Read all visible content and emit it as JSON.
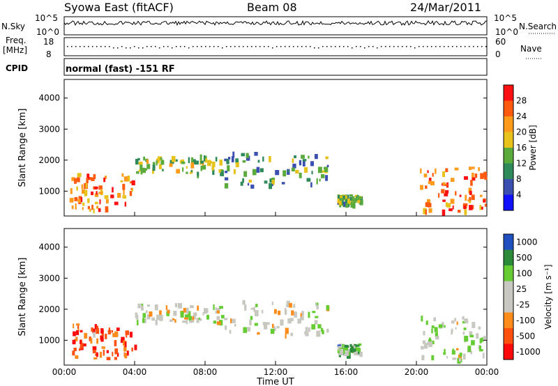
{
  "header": {
    "station": "Syowa East (fitACF)",
    "beam": "Beam 08",
    "date": "24/Mar/2011"
  },
  "noise_panel": {
    "left_label": "N.Sky",
    "right_label": "N.Search",
    "left_ticks": [
      "10^5",
      "10^0"
    ],
    "right_ticks": [
      "10^5",
      "10^0"
    ]
  },
  "freq_panel": {
    "left_label_1": "Freq.",
    "left_label_2": "[MHz]",
    "right_label": "Nave",
    "left_ticks": [
      "18",
      "8"
    ],
    "right_ticks": [
      "60",
      "0"
    ]
  },
  "cpid_panel": {
    "label": "CPID",
    "text": "normal (fast) -151 RF"
  },
  "colors": {
    "power_scale": [
      "#1010ff",
      "#3a4fb0",
      "#2e8a5a",
      "#5aaa3c",
      "#e6c21a",
      "#ff9a1a",
      "#ff5a10",
      "#ff1010"
    ],
    "velocity_scale": [
      "#ff0a0a",
      "#ff5010",
      "#ff8c1a",
      "#c8c8c0",
      "#c8c8c0",
      "#66cc33",
      "#2a8a3a",
      "#2050c0"
    ]
  },
  "chart_data": [
    {
      "type": "heatmap",
      "title": "",
      "xlabel": "Time UT",
      "ylabel": "Slant Range [km]",
      "xticks": [
        "00:00",
        "04:00",
        "08:00",
        "12:00",
        "16:00",
        "20:00",
        "00:00"
      ],
      "xlim": [
        0,
        24
      ],
      "yticks": [
        "1000",
        "2000",
        "3000",
        "4000"
      ],
      "ylim": [
        200,
        4600
      ],
      "colorbar": {
        "label": "Power [dB]",
        "ticks": [
          "4",
          "8",
          "12",
          "16",
          "20",
          "24",
          "28"
        ],
        "range": [
          0,
          32
        ]
      },
      "regions": [
        {
          "t0": 0.3,
          "t1": 4.0,
          "r0": 400,
          "r1": 1600,
          "level": 0.75
        },
        {
          "t0": 4.0,
          "t1": 9.0,
          "r0": 1600,
          "r1": 2200,
          "level": 0.45
        },
        {
          "t0": 9.0,
          "t1": 15.0,
          "r0": 1200,
          "r1": 2300,
          "level": 0.35
        },
        {
          "t0": 15.5,
          "t1": 16.8,
          "r0": 600,
          "r1": 900,
          "level": 0.4
        },
        {
          "t0": 20.2,
          "t1": 24.0,
          "r0": 400,
          "r1": 1800,
          "level": 0.8
        }
      ]
    },
    {
      "type": "heatmap",
      "title": "",
      "xlabel": "Time UT",
      "ylabel": "Slant Range [km]",
      "xticks": [
        "00:00",
        "04:00",
        "08:00",
        "12:00",
        "16:00",
        "20:00",
        "00:00"
      ],
      "xlim": [
        0,
        24
      ],
      "yticks": [
        "1000",
        "2000",
        "3000",
        "4000"
      ],
      "ylim": [
        200,
        4600
      ],
      "colorbar": {
        "label": "Velocity [m s⁻¹]",
        "ticks": [
          "1000",
          "500",
          "100",
          "25",
          "-25",
          "-100",
          "-500",
          "-1000"
        ],
        "range": [
          -1000,
          1000
        ]
      },
      "regions": [
        {
          "t0": 0.3,
          "t1": 4.0,
          "r0": 400,
          "r1": 1600,
          "level": 0.2
        },
        {
          "t0": 4.0,
          "t1": 9.0,
          "r0": 1600,
          "r1": 2200,
          "level": 0.5
        },
        {
          "t0": 9.0,
          "t1": 15.0,
          "r0": 1200,
          "r1": 2300,
          "level": 0.5
        },
        {
          "t0": 15.5,
          "t1": 16.8,
          "r0": 600,
          "r1": 900,
          "level": 0.7
        },
        {
          "t0": 20.2,
          "t1": 24.0,
          "r0": 400,
          "r1": 1800,
          "level": 0.55
        }
      ]
    }
  ]
}
